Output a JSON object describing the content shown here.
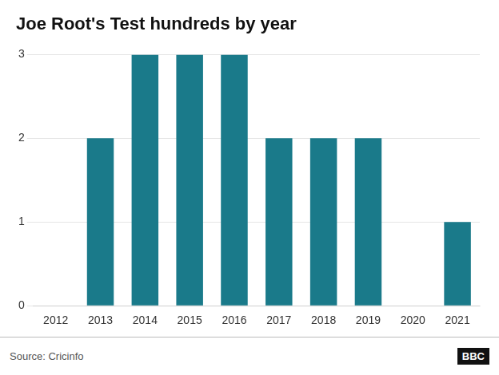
{
  "chart_data": {
    "type": "bar",
    "title": "Joe Root's Test hundreds by year",
    "categories": [
      2012,
      2013,
      2014,
      2015,
      2016,
      2017,
      2018,
      2019,
      2020,
      2021
    ],
    "values": [
      0,
      2,
      3,
      3,
      3,
      2,
      2,
      2,
      0,
      1
    ],
    "color": "#1a7a8a",
    "ylim": [
      0,
      3
    ],
    "yticks": [
      0,
      1,
      2,
      3
    ],
    "grid": true,
    "annotations": [
      "Source: Cricinfo",
      "BBC"
    ]
  }
}
